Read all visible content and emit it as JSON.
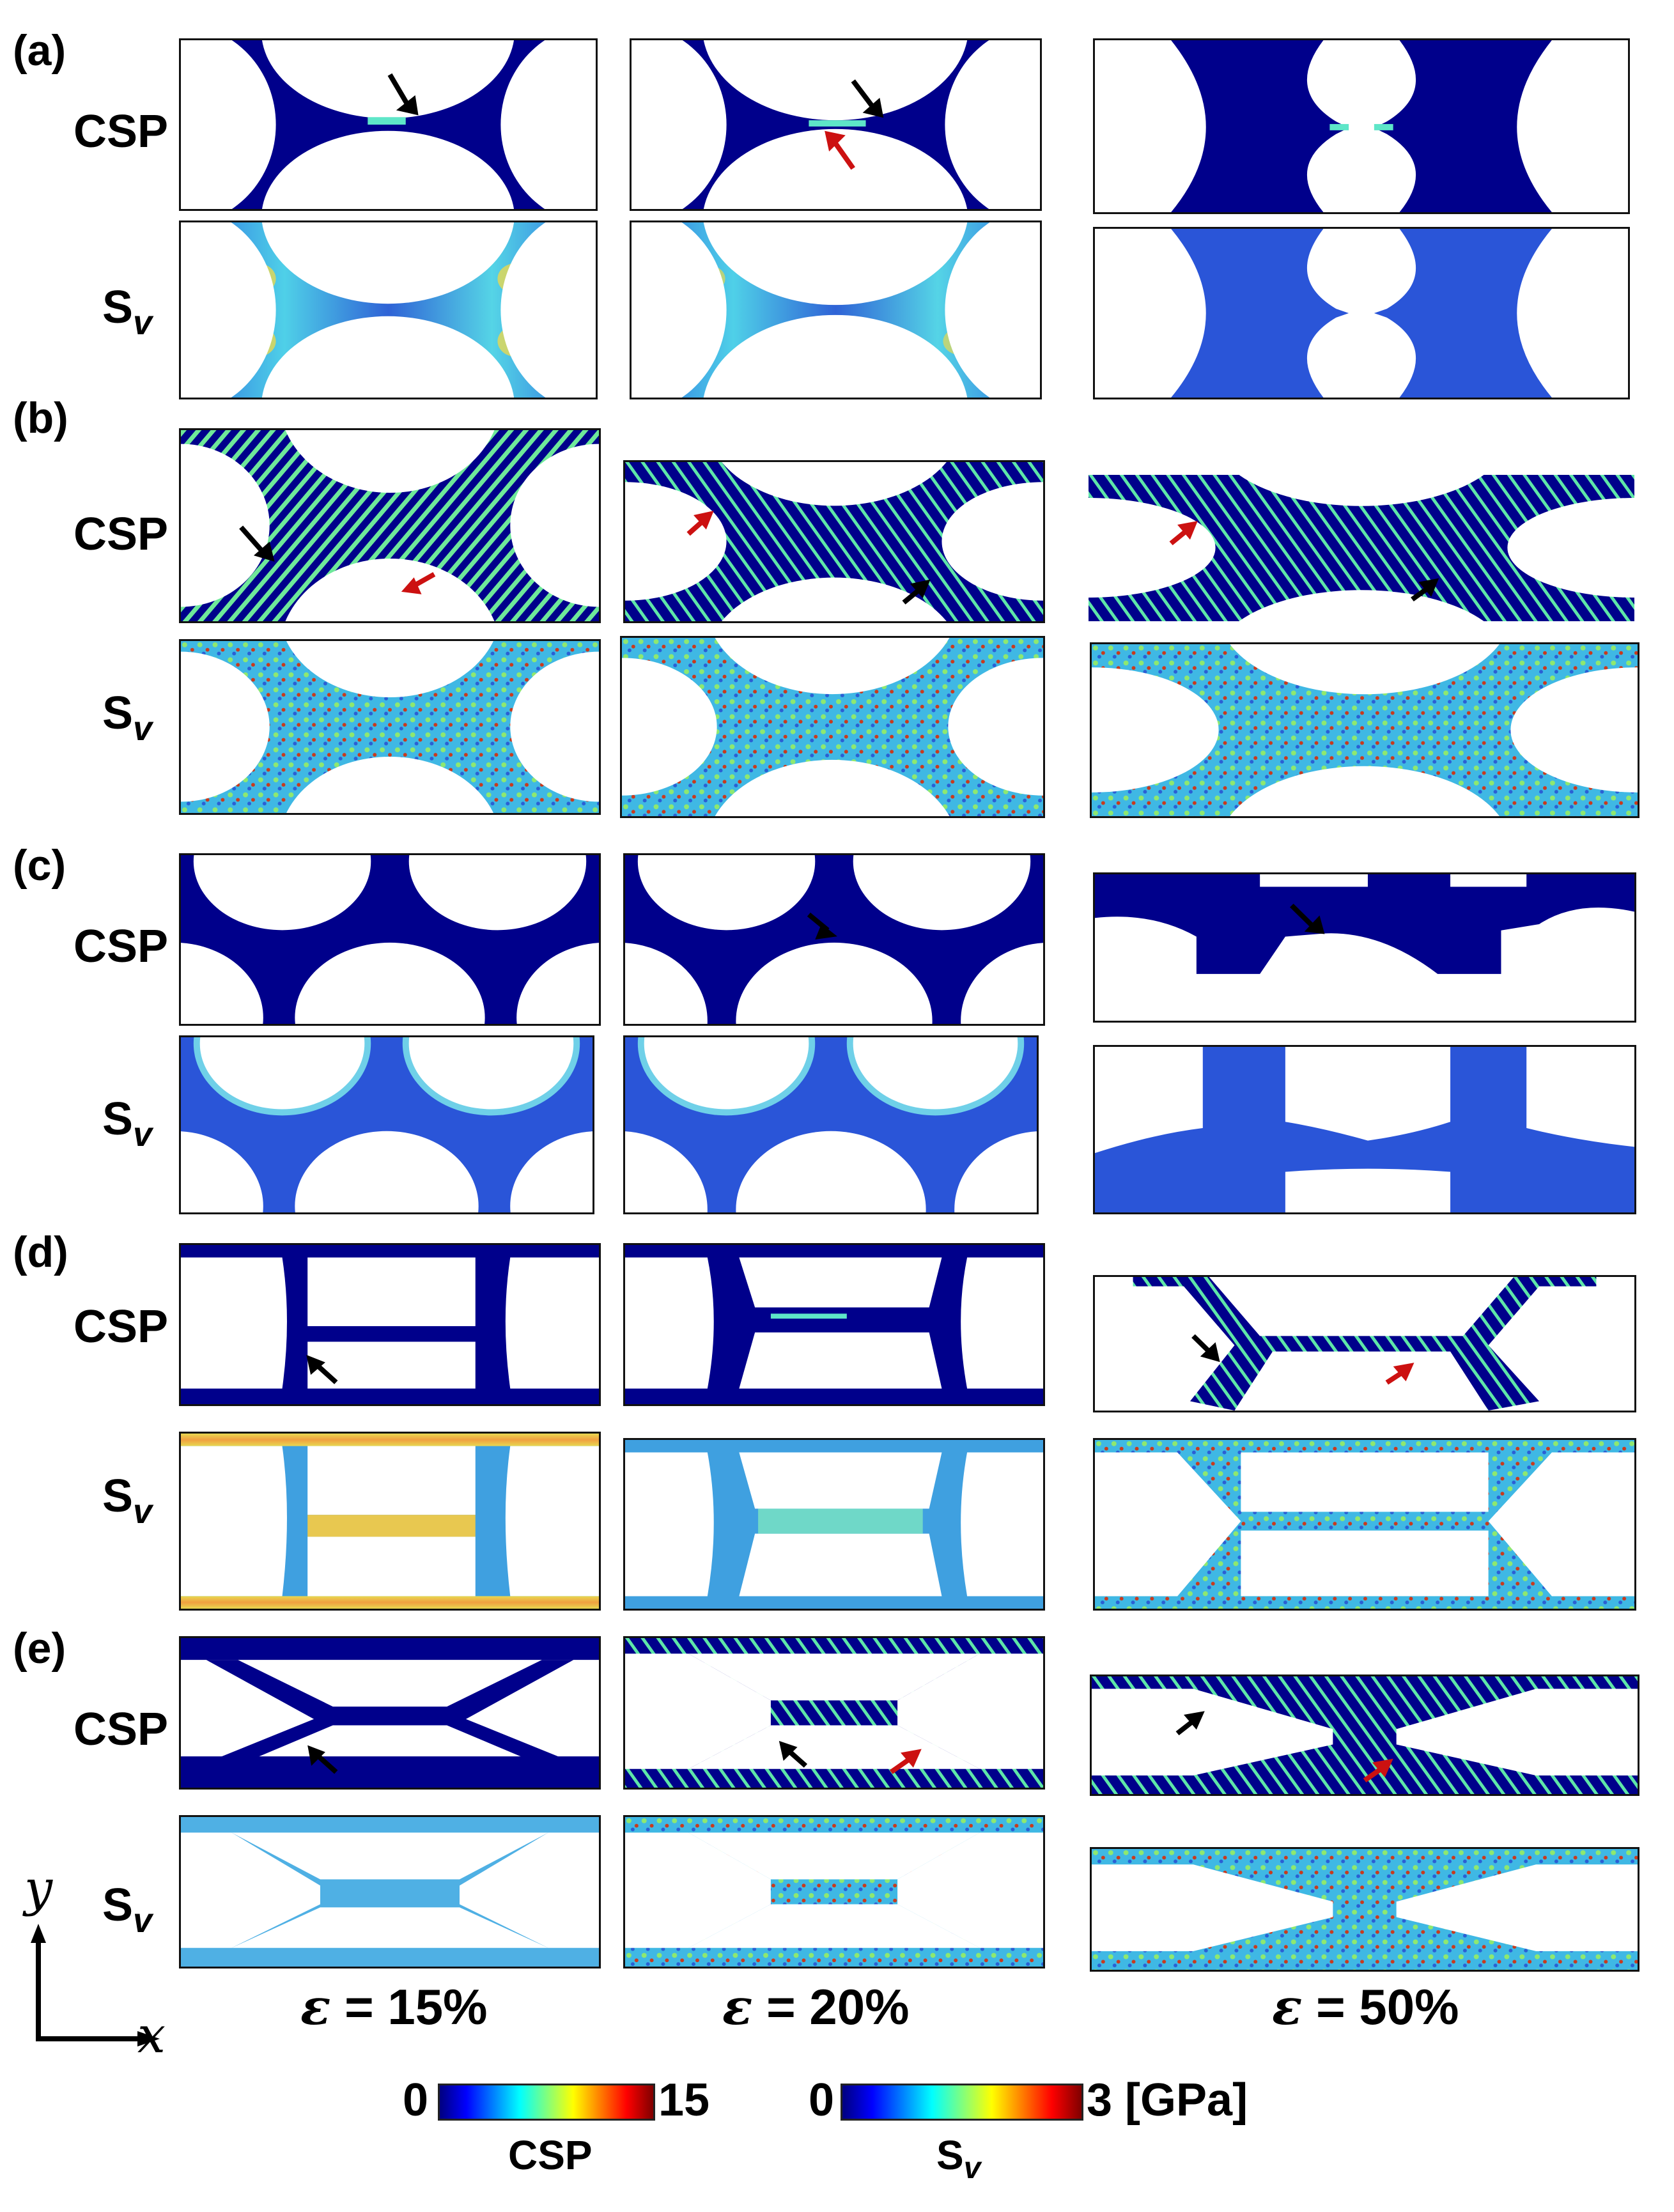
{
  "panel_letters": [
    "(a)",
    "(b)",
    "(c)",
    "(d)",
    "(e)"
  ],
  "row_labels": {
    "csp": "CSP",
    "sv_main": "S",
    "sv_sub": "v"
  },
  "strains": [
    {
      "symbol": "ε",
      "text": " = 15%"
    },
    {
      "symbol": "ε",
      "text": " = 20%"
    },
    {
      "symbol": "ε",
      "text": " = 50%"
    }
  ],
  "colorbars": {
    "csp": {
      "min": "0",
      "max": "15",
      "name": "CSP"
    },
    "sv": {
      "min": "0",
      "max": "3 [GPa]",
      "name_main": "S",
      "name_sub": "v"
    }
  },
  "axes": {
    "x": "x",
    "y": "y"
  },
  "colors": {
    "csp_background": "#00008b",
    "sv_low": "#1e50d2",
    "sv_mid": "#3cc8e6",
    "sv_high": "#d23c1e",
    "arrow_black": "#000000",
    "arrow_red": "#cc1111"
  }
}
